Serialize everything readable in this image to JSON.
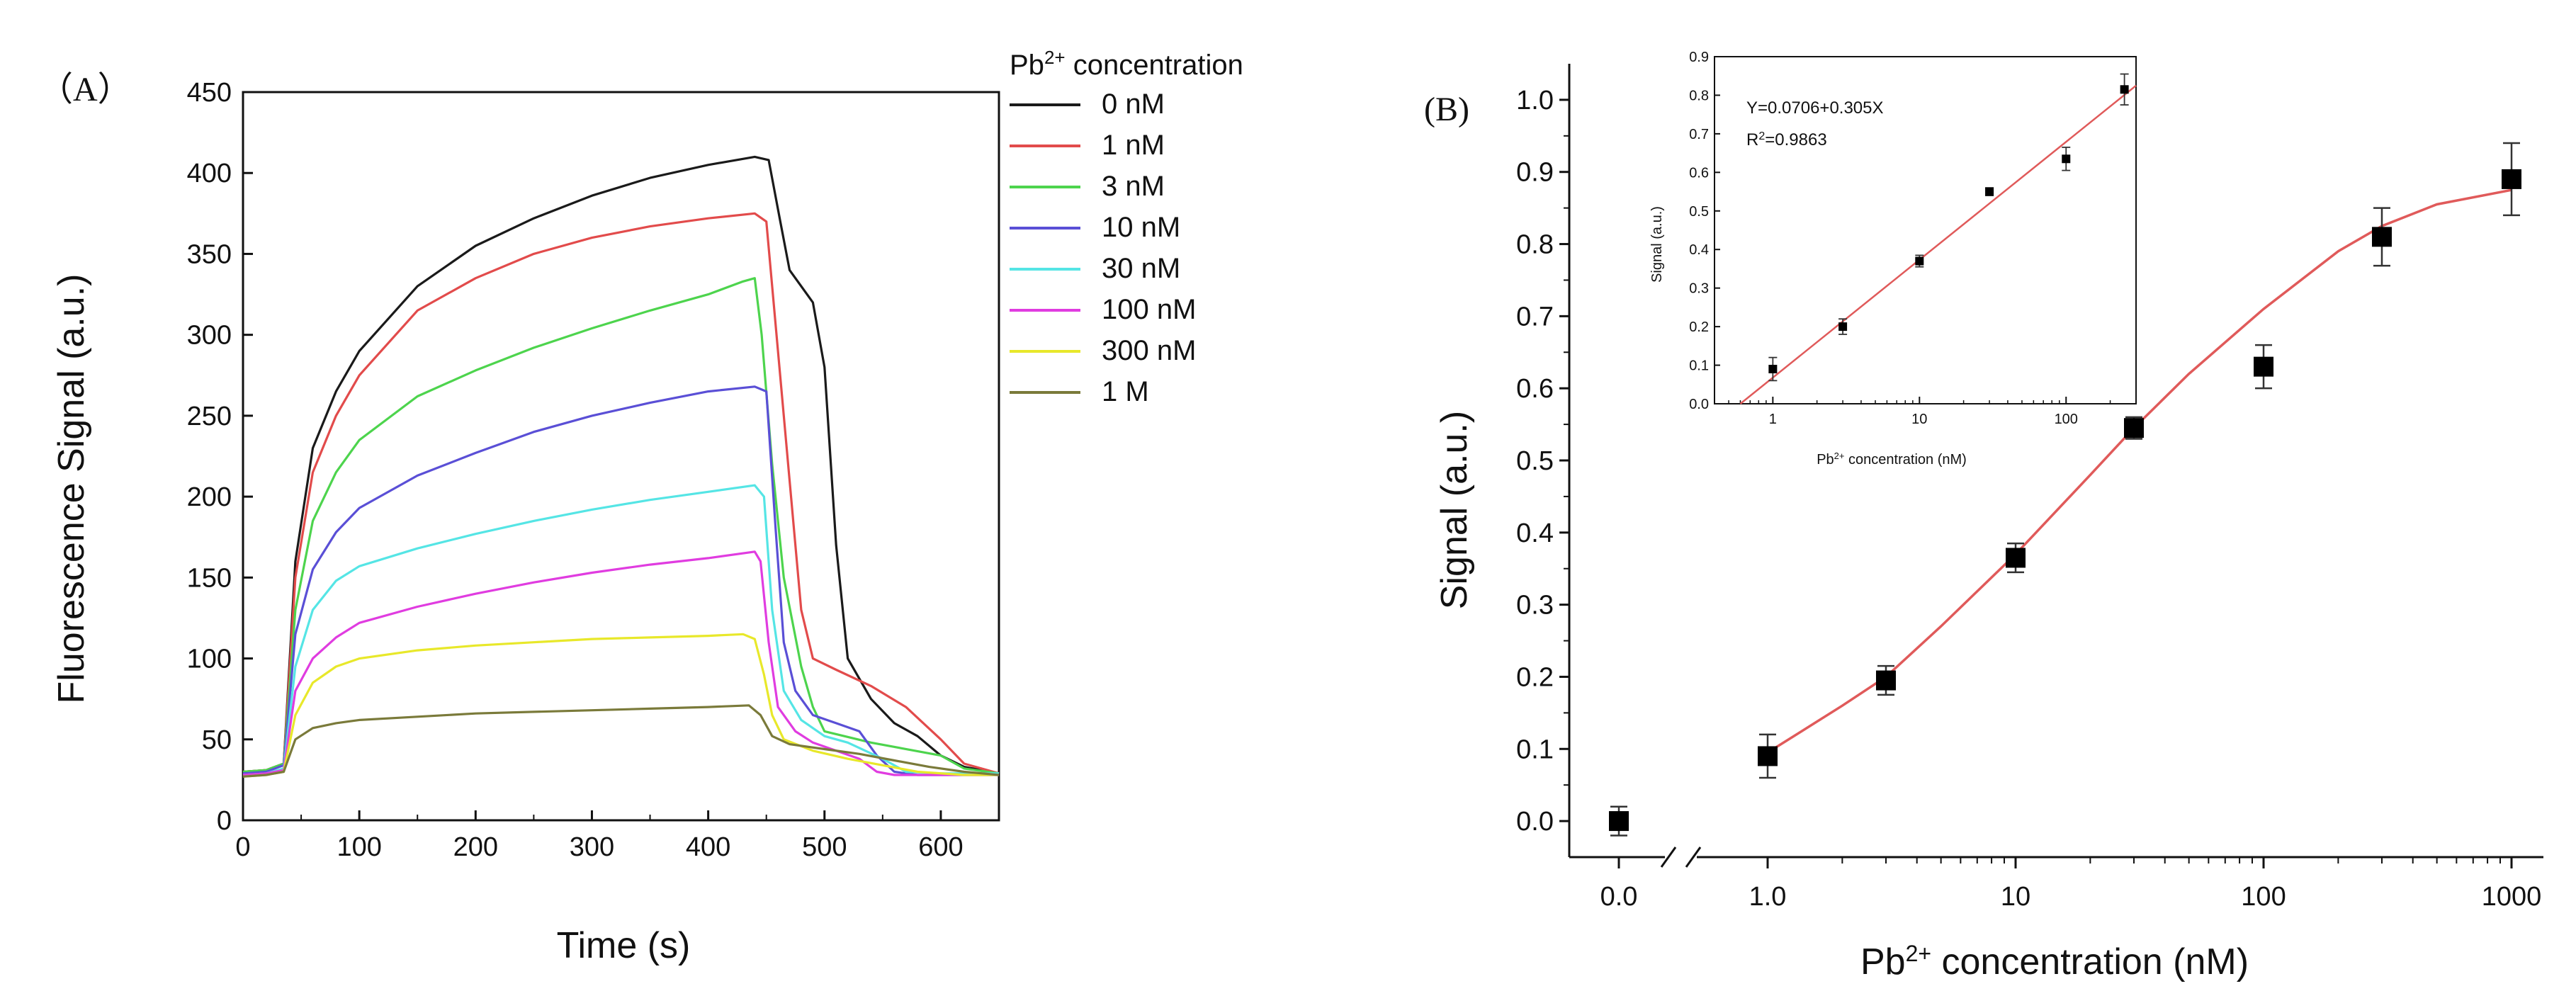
{
  "colors": {
    "axis": "#111111",
    "fit": "#e05a5a",
    "marker": "#000000"
  },
  "chart_data": [
    {
      "panel": "A",
      "panel_label": "（A）",
      "type": "line",
      "xlabel": "Time (s)",
      "ylabel": "Fluorescence Signal (a.u.)",
      "xlim": [
        0,
        650
      ],
      "ylim": [
        0,
        450
      ],
      "x_ticks": [
        0,
        100,
        200,
        300,
        400,
        500,
        600
      ],
      "x_tick_labels": [
        "0",
        "100",
        "200",
        "300",
        "400",
        "500",
        "600"
      ],
      "y_ticks": [
        0,
        50,
        100,
        150,
        200,
        250,
        300,
        350,
        400,
        450
      ],
      "y_tick_labels": [
        "0",
        "50",
        "100",
        "150",
        "200",
        "250",
        "300",
        "350",
        "400",
        "450"
      ],
      "legend": {
        "title_prefix": "Pb",
        "title_sup": "2+",
        "title_suffix": " concentration",
        "placement": "top-right-outside"
      },
      "series": [
        {
          "name": "0 nM",
          "color": "#1a1a1a",
          "points": [
            [
              0,
              30
            ],
            [
              20,
              31
            ],
            [
              35,
              35
            ],
            [
              45,
              160
            ],
            [
              60,
              230
            ],
            [
              80,
              265
            ],
            [
              100,
              290
            ],
            [
              150,
              330
            ],
            [
              200,
              355
            ],
            [
              250,
              372
            ],
            [
              300,
              386
            ],
            [
              350,
              397
            ],
            [
              400,
              405
            ],
            [
              440,
              410
            ],
            [
              452,
              408
            ],
            [
              462,
              370
            ],
            [
              470,
              340
            ],
            [
              480,
              330
            ],
            [
              490,
              320
            ],
            [
              500,
              280
            ],
            [
              510,
              170
            ],
            [
              520,
              100
            ],
            [
              540,
              75
            ],
            [
              560,
              60
            ],
            [
              580,
              52
            ],
            [
              600,
              40
            ],
            [
              620,
              33
            ],
            [
              650,
              29
            ]
          ]
        },
        {
          "name": "1 nM",
          "color": "#e24b4b",
          "points": [
            [
              0,
              30
            ],
            [
              20,
              31
            ],
            [
              35,
              35
            ],
            [
              45,
              150
            ],
            [
              60,
              215
            ],
            [
              80,
              250
            ],
            [
              100,
              275
            ],
            [
              150,
              315
            ],
            [
              200,
              335
            ],
            [
              250,
              350
            ],
            [
              300,
              360
            ],
            [
              350,
              367
            ],
            [
              400,
              372
            ],
            [
              440,
              375
            ],
            [
              450,
              370
            ],
            [
              460,
              290
            ],
            [
              470,
              210
            ],
            [
              480,
              130
            ],
            [
              490,
              100
            ],
            [
              510,
              93
            ],
            [
              540,
              83
            ],
            [
              570,
              70
            ],
            [
              600,
              50
            ],
            [
              620,
              35
            ],
            [
              650,
              29
            ]
          ]
        },
        {
          "name": "3 nM",
          "color": "#4dd44d",
          "points": [
            [
              0,
              30
            ],
            [
              20,
              31
            ],
            [
              35,
              35
            ],
            [
              45,
              130
            ],
            [
              60,
              185
            ],
            [
              80,
              215
            ],
            [
              100,
              235
            ],
            [
              150,
              262
            ],
            [
              200,
              278
            ],
            [
              250,
              292
            ],
            [
              300,
              304
            ],
            [
              350,
              315
            ],
            [
              400,
              325
            ],
            [
              430,
              333
            ],
            [
              440,
              335
            ],
            [
              446,
              300
            ],
            [
              455,
              220
            ],
            [
              465,
              150
            ],
            [
              480,
              95
            ],
            [
              490,
              70
            ],
            [
              500,
              55
            ],
            [
              540,
              48
            ],
            [
              600,
              40
            ],
            [
              620,
              32
            ],
            [
              650,
              29
            ]
          ]
        },
        {
          "name": "10 nM",
          "color": "#5a4fd6",
          "points": [
            [
              0,
              29
            ],
            [
              20,
              30
            ],
            [
              35,
              34
            ],
            [
              45,
              115
            ],
            [
              60,
              155
            ],
            [
              80,
              178
            ],
            [
              100,
              193
            ],
            [
              150,
              213
            ],
            [
              200,
              227
            ],
            [
              250,
              240
            ],
            [
              300,
              250
            ],
            [
              350,
              258
            ],
            [
              400,
              265
            ],
            [
              440,
              268
            ],
            [
              450,
              265
            ],
            [
              458,
              180
            ],
            [
              465,
              110
            ],
            [
              475,
              80
            ],
            [
              490,
              65
            ],
            [
              510,
              60
            ],
            [
              530,
              55
            ],
            [
              545,
              40
            ],
            [
              560,
              30
            ],
            [
              580,
              28
            ],
            [
              600,
              28
            ],
            [
              650,
              28
            ]
          ]
        },
        {
          "name": "30 nM",
          "color": "#55e5e5",
          "points": [
            [
              0,
              28
            ],
            [
              20,
              29
            ],
            [
              35,
              32
            ],
            [
              45,
              95
            ],
            [
              60,
              130
            ],
            [
              80,
              148
            ],
            [
              100,
              157
            ],
            [
              150,
              168
            ],
            [
              200,
              177
            ],
            [
              250,
              185
            ],
            [
              300,
              192
            ],
            [
              350,
              198
            ],
            [
              400,
              203
            ],
            [
              440,
              207
            ],
            [
              448,
              200
            ],
            [
              455,
              130
            ],
            [
              465,
              80
            ],
            [
              480,
              62
            ],
            [
              500,
              52
            ],
            [
              520,
              48
            ],
            [
              550,
              38
            ],
            [
              570,
              30
            ],
            [
              600,
              29
            ],
            [
              650,
              29
            ]
          ]
        },
        {
          "name": "100 nM",
          "color": "#e03ce0",
          "points": [
            [
              0,
              28
            ],
            [
              20,
              29
            ],
            [
              35,
              31
            ],
            [
              45,
              80
            ],
            [
              60,
              100
            ],
            [
              80,
              113
            ],
            [
              100,
              122
            ],
            [
              150,
              132
            ],
            [
              200,
              140
            ],
            [
              250,
              147
            ],
            [
              300,
              153
            ],
            [
              350,
              158
            ],
            [
              400,
              162
            ],
            [
              440,
              166
            ],
            [
              445,
              160
            ],
            [
              452,
              110
            ],
            [
              460,
              70
            ],
            [
              475,
              55
            ],
            [
              490,
              48
            ],
            [
              510,
              43
            ],
            [
              530,
              38
            ],
            [
              545,
              30
            ],
            [
              560,
              28
            ],
            [
              580,
              28
            ],
            [
              600,
              28
            ],
            [
              650,
              28
            ]
          ]
        },
        {
          "name": "300 nM",
          "color": "#e8e82a",
          "points": [
            [
              0,
              27
            ],
            [
              20,
              28
            ],
            [
              35,
              30
            ],
            [
              45,
              65
            ],
            [
              60,
              85
            ],
            [
              80,
              95
            ],
            [
              100,
              100
            ],
            [
              150,
              105
            ],
            [
              200,
              108
            ],
            [
              250,
              110
            ],
            [
              300,
              112
            ],
            [
              350,
              113
            ],
            [
              400,
              114
            ],
            [
              430,
              115
            ],
            [
              440,
              112
            ],
            [
              448,
              90
            ],
            [
              455,
              65
            ],
            [
              465,
              50
            ],
            [
              490,
              43
            ],
            [
              520,
              38
            ],
            [
              550,
              34
            ],
            [
              580,
              30
            ],
            [
              620,
              28
            ],
            [
              650,
              28
            ]
          ]
        },
        {
          "name": "1   M",
          "color": "#7a7a3a",
          "points": [
            [
              0,
              27
            ],
            [
              20,
              28
            ],
            [
              35,
              30
            ],
            [
              45,
              50
            ],
            [
              60,
              57
            ],
            [
              80,
              60
            ],
            [
              100,
              62
            ],
            [
              150,
              64
            ],
            [
              200,
              66
            ],
            [
              250,
              67
            ],
            [
              300,
              68
            ],
            [
              350,
              69
            ],
            [
              400,
              70
            ],
            [
              435,
              71
            ],
            [
              445,
              65
            ],
            [
              455,
              52
            ],
            [
              470,
              47
            ],
            [
              500,
              44
            ],
            [
              530,
              41
            ],
            [
              560,
              37
            ],
            [
              590,
              33
            ],
            [
              620,
              30
            ],
            [
              650,
              28
            ]
          ]
        }
      ]
    },
    {
      "panel": "B",
      "panel_label": "(B)",
      "type": "scatter",
      "xlabel_prefix": "Pb",
      "xlabel_sup": "2+",
      "xlabel_suffix": " concentration (nM)",
      "ylabel": "Signal (a.u.)",
      "x_scale": "log with axis break",
      "ylim": [
        -0.05,
        1.05
      ],
      "y_ticks": [
        0.0,
        0.1,
        0.2,
        0.3,
        0.4,
        0.5,
        0.6,
        0.7,
        0.8,
        0.9,
        1.0
      ],
      "y_tick_labels": [
        "0.0",
        "0.1",
        "0.2",
        "0.3",
        "0.4",
        "0.5",
        "0.6",
        "0.7",
        "0.8",
        "0.9",
        "1.0"
      ],
      "x_ticks": [
        0,
        1,
        10,
        100,
        1000
      ],
      "x_tick_labels": [
        "0.0",
        "1.0",
        "10",
        "100",
        "1000"
      ],
      "points": [
        {
          "x": 0,
          "y": 0.0,
          "err": 0.02
        },
        {
          "x": 1,
          "y": 0.09,
          "err": 0.03
        },
        {
          "x": 3,
          "y": 0.195,
          "err": 0.02
        },
        {
          "x": 10,
          "y": 0.365,
          "err": 0.02
        },
        {
          "x": 30,
          "y": 0.545,
          "err": 0.015
        },
        {
          "x": 100,
          "y": 0.63,
          "err": 0.03
        },
        {
          "x": 300,
          "y": 0.81,
          "err": 0.04
        },
        {
          "x": 1000,
          "y": 0.89,
          "err": 0.05
        }
      ],
      "fit_curve": [
        [
          1,
          0.095
        ],
        [
          2,
          0.16
        ],
        [
          3,
          0.2
        ],
        [
          5,
          0.27
        ],
        [
          10,
          0.37
        ],
        [
          20,
          0.48
        ],
        [
          30,
          0.545
        ],
        [
          50,
          0.62
        ],
        [
          100,
          0.71
        ],
        [
          200,
          0.79
        ],
        [
          300,
          0.825
        ],
        [
          500,
          0.855
        ],
        [
          1000,
          0.875
        ]
      ]
    },
    {
      "panel": "B-inset",
      "type": "scatter",
      "ylabel": "Signal (a.u.)",
      "xlabel_prefix": "Pb",
      "xlabel_sup": "2+",
      "xlabel_suffix": " concentration (nM)",
      "x_scale": "log",
      "xlim": [
        0.4,
        300
      ],
      "ylim": [
        0,
        0.9
      ],
      "y_ticks": [
        0.0,
        0.1,
        0.2,
        0.3,
        0.4,
        0.5,
        0.6,
        0.7,
        0.8,
        0.9
      ],
      "y_tick_labels": [
        "0.0",
        "0.1",
        "0.2",
        "0.3",
        "0.4",
        "0.5",
        "0.6",
        "0.7",
        "0.8",
        "0.9"
      ],
      "x_ticks": [
        1,
        10,
        100
      ],
      "x_tick_labels": [
        "1",
        "10",
        "100"
      ],
      "annotation_equation": "Y=0.0706+0.305X",
      "annotation_r2_prefix": "R",
      "annotation_r2_sup": "2",
      "annotation_r2_suffix": "=0.9863",
      "points": [
        {
          "x": 1,
          "y": 0.09,
          "err": 0.03
        },
        {
          "x": 3,
          "y": 0.2,
          "err": 0.02
        },
        {
          "x": 10,
          "y": 0.37,
          "err": 0.015
        },
        {
          "x": 30,
          "y": 0.55,
          "err": 0.01
        },
        {
          "x": 100,
          "y": 0.635,
          "err": 0.03
        },
        {
          "x": 250,
          "y": 0.815,
          "err": 0.04
        }
      ],
      "fit_line": {
        "intercept": 0.0706,
        "slope": 0.305
      }
    }
  ]
}
